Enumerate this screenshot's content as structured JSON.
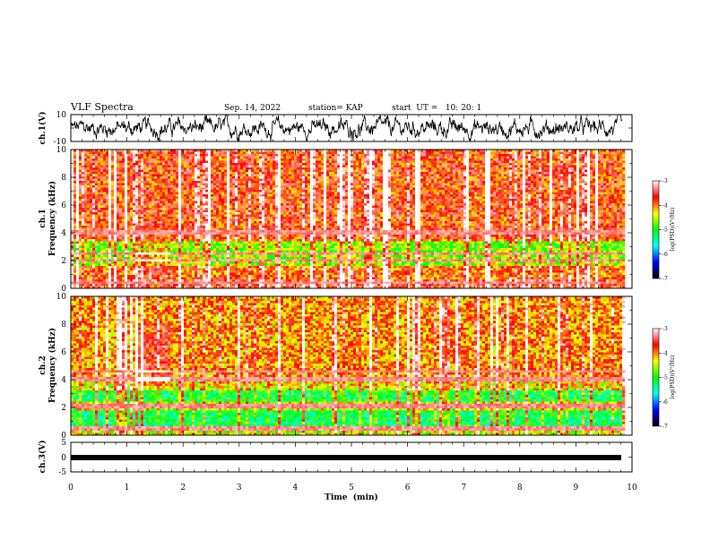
{
  "header": {
    "title": "VLF Spectra",
    "date": "Sep. 14, 2022",
    "station": "station= KAP",
    "start_time": "start  UT =   10: 20: 1"
  },
  "chart_data": [
    {
      "type": "line",
      "name": "ch1-waveform",
      "ylabel": "ch.1(V)",
      "ylim": [
        -10,
        10
      ],
      "yticks": [
        "10",
        "-10"
      ],
      "xlim": [
        0,
        10
      ],
      "color": "#000000"
    },
    {
      "type": "heatmap",
      "name": "ch1-spectrogram",
      "ylabel": "ch.1\nFrequency  (kHz)",
      "ylabel_lines": [
        "ch.1",
        "Frequency  (kHz)"
      ],
      "ylim": [
        0,
        10
      ],
      "yticks": [
        "0",
        "2",
        "4",
        "6",
        "8",
        "10"
      ],
      "xlim": [
        0,
        10
      ],
      "data_end_min": 9.83,
      "colorbar": {
        "label": "log(PSD)(V²/Hz)",
        "range": [
          -7,
          -3
        ],
        "ticks": [
          "-3",
          "-4",
          "-5",
          "-6",
          "-7"
        ],
        "colors": [
          "#ffffff",
          "#ff0000",
          "#ffff00",
          "#00ff00",
          "#00ffff",
          "#0000ff",
          "#000000"
        ]
      }
    },
    {
      "type": "heatmap",
      "name": "ch2-spectrogram",
      "ylabel": "ch.2\nFrequency  (kHz)",
      "ylabel_lines": [
        "ch.2",
        "Frequency  (kHz)"
      ],
      "ylim": [
        0,
        10
      ],
      "yticks": [
        "0",
        "2",
        "4",
        "6",
        "8",
        "10"
      ],
      "xlim": [
        0,
        10
      ],
      "data_end_min": 9.83,
      "colorbar": {
        "label": "log(PSD)(V²/Hz)",
        "range": [
          -7,
          -3
        ],
        "ticks": [
          "-3",
          "-4",
          "-5",
          "-6",
          "-7"
        ],
        "colors": [
          "#ffffff",
          "#ff0000",
          "#ffff00",
          "#00ff00",
          "#00ffff",
          "#0000ff",
          "#000000"
        ]
      }
    },
    {
      "type": "line",
      "name": "ch3-waveform",
      "ylabel": "ch.3(V)",
      "ylim": [
        -5,
        5
      ],
      "yticks": [
        "5",
        "0",
        "-5"
      ],
      "xlim": [
        0,
        10
      ],
      "xlabel": "Time  (min)",
      "xticks": [
        "0",
        "1",
        "2",
        "3",
        "4",
        "5",
        "6",
        "7",
        "8",
        "9",
        "10"
      ],
      "color": "#000000"
    }
  ]
}
